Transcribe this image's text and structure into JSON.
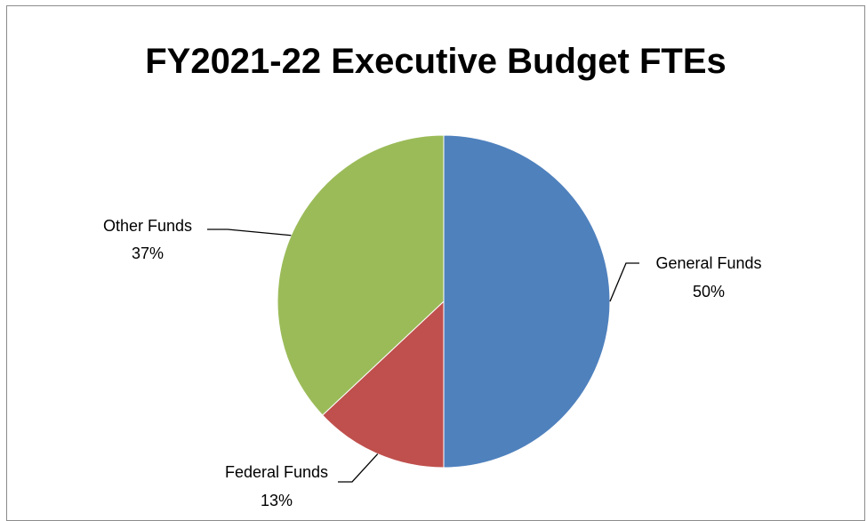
{
  "chart_data": {
    "type": "pie",
    "title": "FY2021-22 Executive Budget FTEs",
    "slices": [
      {
        "label": "General Funds",
        "value": 50,
        "percent_label": "50%",
        "color": "#4f81bd"
      },
      {
        "label": "Federal Funds",
        "value": 13,
        "percent_label": "13%",
        "color": "#c0504d"
      },
      {
        "label": "Other Funds",
        "value": 37,
        "percent_label": "37%",
        "color": "#9bbb59"
      }
    ],
    "legend": "none",
    "data_labels": "outside-with-leader-lines"
  }
}
